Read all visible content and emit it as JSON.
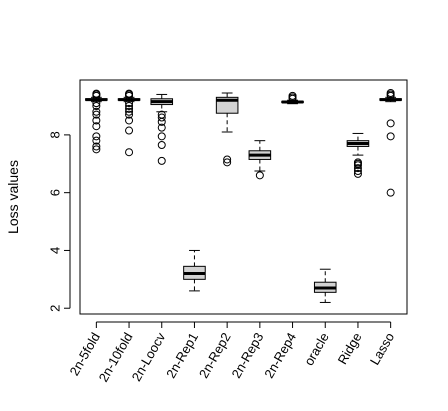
{
  "chart_data": {
    "type": "boxplot",
    "title": "",
    "xlabel": "",
    "ylabel": "Loss values",
    "ylim": [
      1.8,
      9.9
    ],
    "yticks": [
      2,
      4,
      6,
      8
    ],
    "grid": false,
    "legend": "none",
    "box_fill": "#d3d3d3",
    "categories": [
      "2n-5fold",
      "2n-10fold",
      "2n-Loocv",
      "2n-Rep1",
      "2n-Rep2",
      "2n-Rep3",
      "2n-Rep4",
      "oracle",
      "Ridge",
      "Lasso"
    ],
    "boxes": [
      {
        "whisker_low": 9.15,
        "q1": 9.2,
        "median": 9.22,
        "q3": 9.25,
        "whisker_high": 9.3,
        "outliers": [
          7.5,
          7.6,
          7.8,
          7.95,
          8.3,
          8.5,
          8.7,
          8.8,
          9.0,
          9.1,
          9.35,
          9.4,
          9.43
        ]
      },
      {
        "whisker_low": 9.15,
        "q1": 9.2,
        "median": 9.22,
        "q3": 9.25,
        "whisker_high": 9.3,
        "outliers": [
          7.4,
          8.15,
          8.5,
          8.7,
          8.8,
          8.9,
          9.0,
          9.1,
          9.35,
          9.4,
          9.43
        ]
      },
      {
        "whisker_low": 8.8,
        "q1": 9.05,
        "median": 9.15,
        "q3": 9.25,
        "whisker_high": 9.4,
        "outliers": [
          7.1,
          7.65,
          7.95,
          8.25,
          8.45,
          8.6,
          8.7
        ]
      },
      {
        "whisker_low": 2.6,
        "q1": 3.0,
        "median": 3.2,
        "q3": 3.45,
        "whisker_high": 4.0,
        "outliers": []
      },
      {
        "whisker_low": 8.1,
        "q1": 8.75,
        "median": 9.2,
        "q3": 9.3,
        "whisker_high": 9.45,
        "outliers": [
          7.05,
          7.15
        ]
      },
      {
        "whisker_low": 6.75,
        "q1": 7.15,
        "median": 7.3,
        "q3": 7.45,
        "whisker_high": 7.8,
        "outliers": [
          6.6
        ]
      },
      {
        "whisker_low": 9.08,
        "q1": 9.12,
        "median": 9.14,
        "q3": 9.16,
        "whisker_high": 9.2,
        "outliers": [
          9.25,
          9.3,
          9.35
        ]
      },
      {
        "whisker_low": 2.2,
        "q1": 2.55,
        "median": 2.7,
        "q3": 2.9,
        "whisker_high": 3.35,
        "outliers": []
      },
      {
        "whisker_low": 7.3,
        "q1": 7.6,
        "median": 7.7,
        "q3": 7.8,
        "whisker_high": 8.05,
        "outliers": [
          6.65,
          6.75,
          6.85,
          6.95,
          7.0,
          7.05
        ]
      },
      {
        "whisker_low": 9.15,
        "q1": 9.2,
        "median": 9.22,
        "q3": 9.25,
        "whisker_high": 9.3,
        "outliers": [
          6.0,
          7.95,
          8.4,
          9.35,
          9.4,
          9.45
        ]
      }
    ]
  }
}
